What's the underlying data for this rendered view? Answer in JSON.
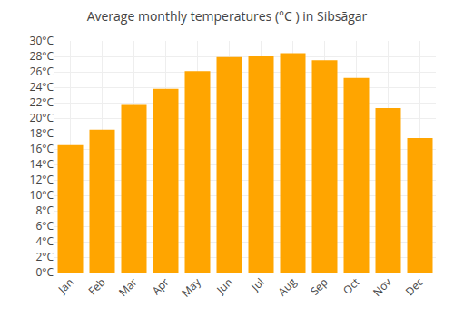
{
  "chart_data": {
    "type": "bar",
    "title": "Average monthly temperatures (°C ) in Sibsāgar",
    "categories": [
      "Jan",
      "Feb",
      "Mar",
      "Apr",
      "May",
      "Jun",
      "Jul",
      "Aug",
      "Sep",
      "Oct",
      "Nov",
      "Dec"
    ],
    "values": [
      16.5,
      18.5,
      21.7,
      23.8,
      26.1,
      27.9,
      28.0,
      28.4,
      27.5,
      25.2,
      21.3,
      17.4
    ],
    "color": "#FFA500",
    "ylim": [
      0,
      30
    ],
    "yticks": [
      {
        "value": 0,
        "label": "0°C"
      },
      {
        "value": 2,
        "label": "2°C"
      },
      {
        "value": 4,
        "label": "4°C"
      },
      {
        "value": 6,
        "label": "6°C"
      },
      {
        "value": 8,
        "label": "8°C"
      },
      {
        "value": 10,
        "label": "10°C"
      },
      {
        "value": 12,
        "label": "12°C"
      },
      {
        "value": 14,
        "label": "14°C"
      },
      {
        "value": 16,
        "label": "16°C"
      },
      {
        "value": 18,
        "label": "18°C"
      },
      {
        "value": 20,
        "label": "20°C"
      },
      {
        "value": 22,
        "label": "22°C"
      },
      {
        "value": 24,
        "label": "24°C"
      },
      {
        "value": 26,
        "label": "26°C"
      },
      {
        "value": 28,
        "label": "28°C"
      },
      {
        "value": 30,
        "label": "30°C"
      }
    ],
    "grid": true
  }
}
